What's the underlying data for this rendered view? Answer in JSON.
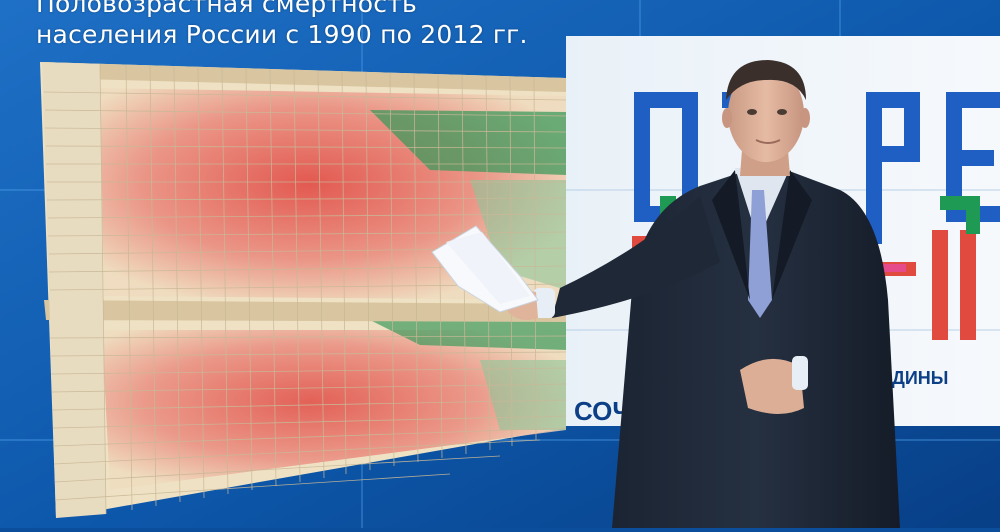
{
  "screen": {
    "title_line1": "Половозрастная смертность",
    "title_line2": "населения России с 1990 по 2012 гг.",
    "logo_letters": [
      "О",
      "Т",
      "Р",
      "Е"
    ],
    "partial_label_left": "СОЧИ",
    "partial_label_right": "ЕДИНЫ"
  },
  "colors": {
    "studio_blue": "#0b4f9c",
    "studio_blue_light": "#2f86d8",
    "heat_red": "#e0564f",
    "heat_pink": "#f1b2a6",
    "heat_cream": "#efe2c4",
    "heat_green": "#3d9a5c",
    "logo_blue": "#1f5fc4",
    "logo_red": "#e04a3f",
    "logo_green": "#1f9a55",
    "suit": "#1c2330",
    "tie": "#8ea0d6"
  }
}
